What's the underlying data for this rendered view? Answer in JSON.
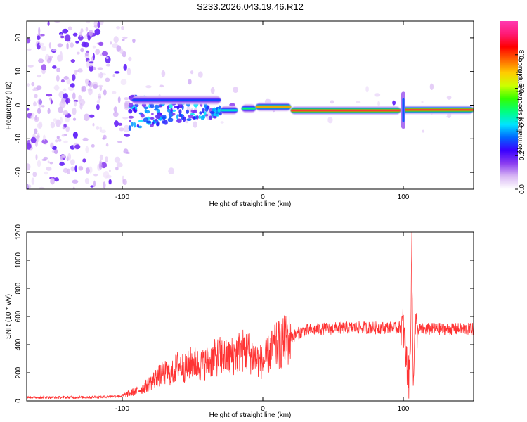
{
  "figure": {
    "title": "S233.2026.043.19.46.R12"
  },
  "chart_data": [
    {
      "type": "heatmap",
      "name": "spectrogram",
      "xlabel": "Height of straight line (km)",
      "ylabel": "Frequency (Hz)",
      "xlim": [
        -168,
        150
      ],
      "ylim": [
        -25,
        25
      ],
      "xticks": [
        -100,
        0,
        100
      ],
      "yticks": [
        -20,
        -10,
        0,
        10,
        20
      ],
      "colorbar": {
        "label": "Normalized spectral amplitude",
        "range": [
          0,
          1
        ],
        "ticks": [
          0.0,
          0.2,
          0.4,
          0.6,
          0.8
        ],
        "colormap": [
          "#ffffff",
          "#d9b8f4",
          "#8a3cf0",
          "#3a00ff",
          "#0066ff",
          "#00e5ff",
          "#00ff7f",
          "#33ff00",
          "#ccff00",
          "#ffcc00",
          "#ff6600",
          "#ff0000",
          "#ff1a75",
          "#ff3ab0"
        ]
      },
      "ridge_segments": [
        {
          "x0": -93,
          "x1": -30,
          "freq": 1.5,
          "amplitude": 0.3
        },
        {
          "x0": -30,
          "x1": -18,
          "freq": -1.5,
          "amplitude": 0.45
        },
        {
          "x0": -15,
          "x1": -5,
          "freq": -1.0,
          "amplitude": 0.5
        },
        {
          "x0": -5,
          "x1": 20,
          "freq": -0.5,
          "amplitude": 0.75
        },
        {
          "x0": 20,
          "x1": 98,
          "freq": -1.6,
          "amplitude": 0.9
        },
        {
          "x0": 98,
          "x1": 150,
          "freq": -1.4,
          "amplitude": 0.9
        }
      ],
      "vertical_feature": {
        "x": 100,
        "freq_range": [
          -7,
          4
        ]
      }
    },
    {
      "type": "line",
      "name": "snr",
      "xlabel": "Height of straight line (km)",
      "ylabel": "SNR (10 * v/v)",
      "xlim": [
        -168,
        150
      ],
      "ylim": [
        0,
        1200
      ],
      "xticks": [
        -100,
        0,
        100
      ],
      "yticks": [
        0,
        200,
        400,
        600,
        800,
        1000,
        1200
      ],
      "color": "#ff3333",
      "series": [
        {
          "name": "SNR",
          "x": [
            -168,
            -150,
            -130,
            -115,
            -100,
            -90,
            -85,
            -80,
            -75,
            -70,
            -65,
            -60,
            -55,
            -50,
            -45,
            -40,
            -35,
            -30,
            -25,
            -20,
            -15,
            -10,
            -5,
            0,
            5,
            10,
            15,
            20,
            25,
            30,
            40,
            50,
            60,
            70,
            80,
            90,
            95,
            100,
            102,
            104,
            105,
            106,
            107,
            108,
            110,
            120,
            130,
            140,
            150
          ],
          "y": [
            25,
            25,
            25,
            28,
            35,
            70,
            90,
            130,
            170,
            200,
            190,
            260,
            230,
            280,
            250,
            270,
            300,
            320,
            300,
            330,
            360,
            350,
            300,
            270,
            340,
            390,
            420,
            450,
            480,
            500,
            510,
            515,
            520,
            520,
            520,
            520,
            515,
            530,
            300,
            150,
            400,
            1180,
            100,
            520,
            510,
            510,
            510,
            510,
            510
          ]
        }
      ]
    }
  ]
}
